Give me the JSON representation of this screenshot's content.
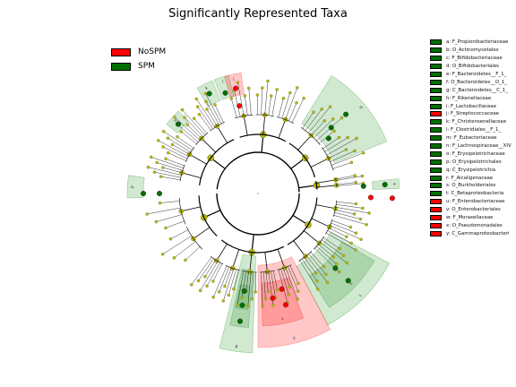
{
  "title": "Significantly Represented Taxa",
  "colors": {
    "NoSPM": "#ff0000",
    "SPM": "#007000",
    "neutral": "#b8b800",
    "bg_green": "#008000",
    "bg_red": "#ff0000"
  },
  "groups": [
    {
      "name": "NoSPM",
      "color": "#ff0000"
    },
    {
      "name": "SPM",
      "color": "#007000"
    }
  ],
  "taxa": [
    {
      "letter": "a",
      "label": "a: F_Propionibacteriaceae",
      "group": "SPM"
    },
    {
      "letter": "b",
      "label": "b: O_Actinomycetales",
      "group": "SPM"
    },
    {
      "letter": "c",
      "label": "c: F_Bifidobacteriaceae",
      "group": "SPM"
    },
    {
      "letter": "d",
      "label": "d: O_Bifidobacteriales",
      "group": "SPM"
    },
    {
      "letter": "e",
      "label": "e: F_Bacteroidetes__F_1_",
      "group": "SPM"
    },
    {
      "letter": "f",
      "label": "f: O_Bacteroidetes__O_1_",
      "group": "SPM"
    },
    {
      "letter": "g",
      "label": "g: C_Bacteroidetes__C_1_",
      "group": "SPM"
    },
    {
      "letter": "h",
      "label": "h: F_Rikenellaceae",
      "group": "SPM"
    },
    {
      "letter": "i",
      "label": "i: F_Lactobacillaceae",
      "group": "SPM"
    },
    {
      "letter": "j",
      "label": "j: F_Streptococcaceae",
      "group": "NoSPM"
    },
    {
      "letter": "k",
      "label": "k: F_Christensenellaceae",
      "group": "SPM"
    },
    {
      "letter": "l",
      "label": "l: F_Clostridiales__F_1_",
      "group": "SPM"
    },
    {
      "letter": "m",
      "label": "m: F_Eubacteriaceae",
      "group": "SPM"
    },
    {
      "letter": "n",
      "label": "n: F_Lachnospiraceae__XIV",
      "group": "SPM"
    },
    {
      "letter": "o",
      "label": "o: F_Erysipelotrichaceae",
      "group": "SPM"
    },
    {
      "letter": "p",
      "label": "p: O_Erysipelotrichales",
      "group": "SPM"
    },
    {
      "letter": "q",
      "label": "q: C_Erysipelotrichia",
      "group": "SPM"
    },
    {
      "letter": "r",
      "label": "r: F_Alcaligenaceae",
      "group": "SPM"
    },
    {
      "letter": "s",
      "label": "s: O_Burkholderiales",
      "group": "SPM"
    },
    {
      "letter": "t",
      "label": "t: C_Betaproteobacteria",
      "group": "SPM"
    },
    {
      "letter": "u",
      "label": "u: F_Enterobacteriaceae",
      "group": "NoSPM"
    },
    {
      "letter": "v",
      "label": "v: O_Enterobacteriales",
      "group": "NoSPM"
    },
    {
      "letter": "w",
      "label": "w: F_Moraxellaceae",
      "group": "NoSPM"
    },
    {
      "letter": "x",
      "label": "x: O_Pseudomonadales",
      "group": "NoSPM"
    },
    {
      "letter": "y",
      "label": "y: C_Gammaproteobacteri",
      "group": "NoSPM"
    }
  ]
}
